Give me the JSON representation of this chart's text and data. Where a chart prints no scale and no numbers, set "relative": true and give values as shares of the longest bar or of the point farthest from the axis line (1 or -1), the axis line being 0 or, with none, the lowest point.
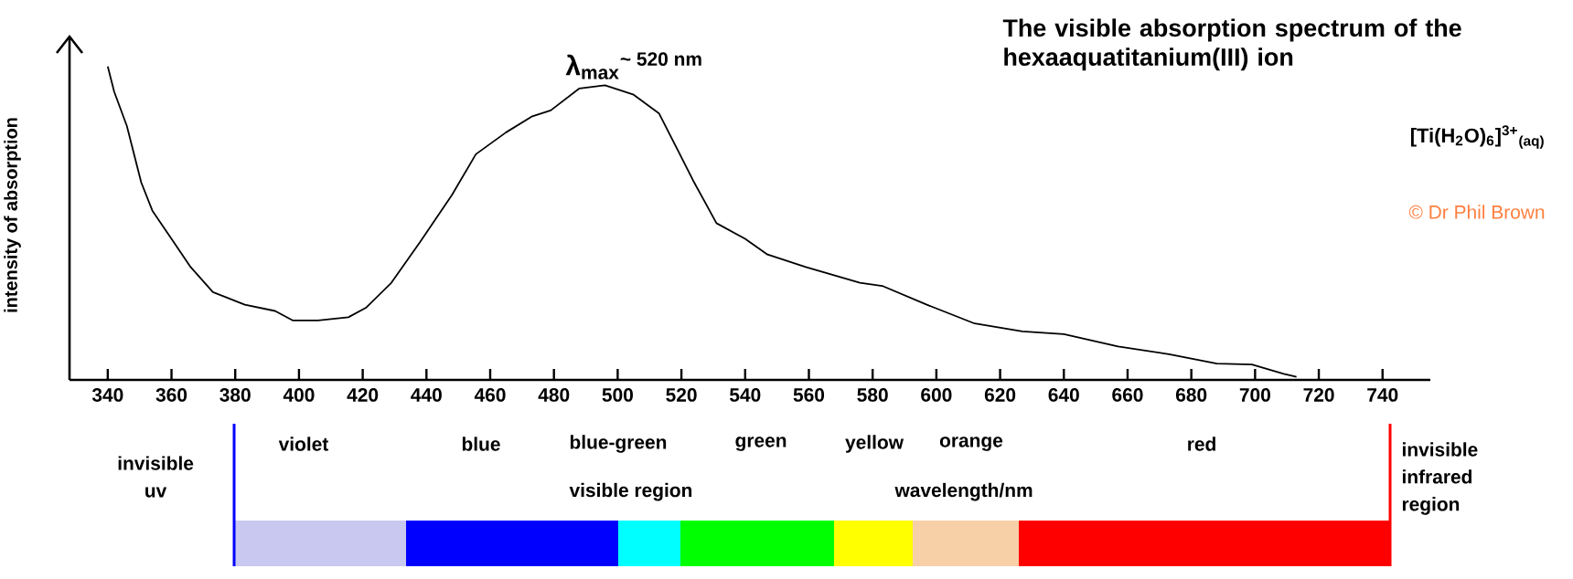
{
  "chart_data": {
    "type": "line",
    "relative": true,
    "title": "The visible absorption spectrum of the hexaaquatitanium(III) ion",
    "ylabel": "intensity of absorption",
    "xlabel": "wavelength/nm",
    "color": "#000000",
    "x": [
      340,
      342,
      346,
      350.5,
      354,
      360,
      366,
      373,
      383,
      392.5,
      398,
      406,
      415.5,
      421,
      429,
      438,
      448,
      455.5,
      465,
      473,
      479,
      488,
      496,
      505,
      513,
      519,
      524,
      531,
      540,
      547,
      559,
      576,
      583,
      597,
      612,
      627,
      640,
      657,
      673,
      688,
      699,
      709,
      713
    ],
    "values": [
      1.0,
      0.92,
      0.81,
      0.63,
      0.54,
      0.45,
      0.36,
      0.28,
      0.24,
      0.22,
      0.19,
      0.19,
      0.2,
      0.23,
      0.31,
      0.44,
      0.59,
      0.72,
      0.79,
      0.84,
      0.86,
      0.93,
      0.94,
      0.91,
      0.85,
      0.73,
      0.63,
      0.5,
      0.45,
      0.4,
      0.36,
      0.31,
      0.3,
      0.24,
      0.18,
      0.155,
      0.146,
      0.107,
      0.082,
      0.052,
      0.049,
      0.019,
      0.01
    ],
    "xlim": [
      328,
      755
    ],
    "xticks": [
      340,
      360,
      380,
      400,
      420,
      440,
      460,
      480,
      500,
      520,
      540,
      560,
      580,
      600,
      620,
      640,
      660,
      680,
      700,
      720,
      740
    ],
    "annotations": [
      "λ$_{max}$$^{~ 520 nm}$",
      "[Ti(H$_{2}$O)$_{6}$]$^{3+}$$_{(aq)}$",
      "© Dr Phil Brown",
      "invisible uv",
      "visible region",
      "invisible infrared region",
      "violet",
      "blue",
      "blue-green",
      "green",
      "yellow",
      "orange",
      "red"
    ]
  }
}
